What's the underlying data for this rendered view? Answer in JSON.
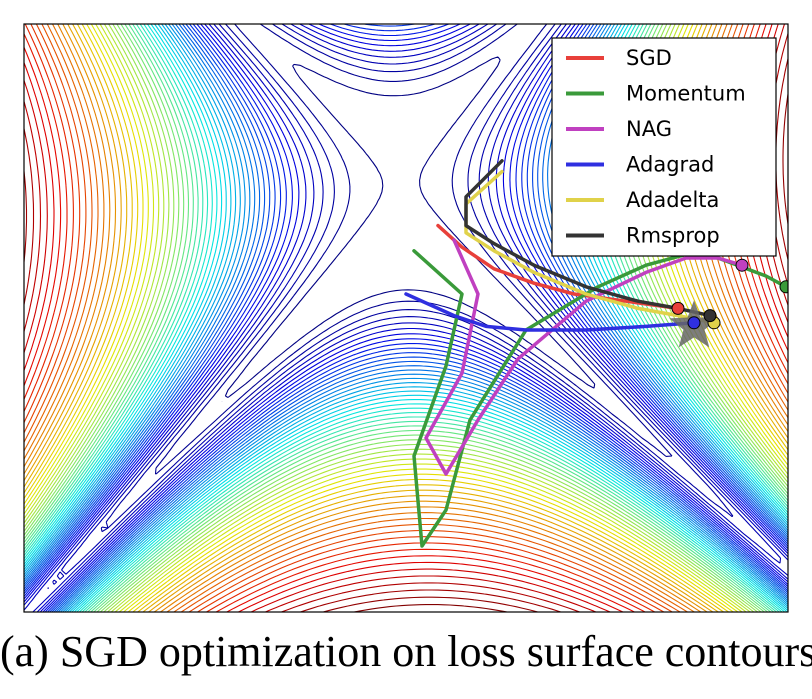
{
  "caption": "(a) SGD optimization on loss surface contours",
  "chart_data": {
    "type": "line",
    "title": "",
    "xlabel": "",
    "ylabel": "",
    "background": "contour",
    "contour_colormap": "jet",
    "legend_position": "top-right",
    "minimum_marker": "star",
    "series": [
      {
        "name": "SGD",
        "color": "#e8403a",
        "x": [
          0.08,
          0.14,
          0.22,
          0.32,
          0.42,
          0.55,
          0.68
        ],
        "y": [
          0.09,
          0.03,
          -0.03,
          -0.07,
          -0.1,
          -0.12,
          -0.14
        ]
      },
      {
        "name": "Momentum",
        "color": "#3a9a3a",
        "x": [
          0.02,
          0.14,
          0.1,
          0.02,
          0.04,
          0.1,
          0.16,
          0.3,
          0.48,
          0.6,
          0.7,
          0.78,
          0.9,
          0.95
        ],
        "y": [
          0.02,
          -0.1,
          -0.3,
          -0.55,
          -0.8,
          -0.7,
          -0.45,
          -0.2,
          -0.08,
          -0.02,
          0.01,
          0.0,
          -0.05,
          -0.08
        ]
      },
      {
        "name": "NAG",
        "color": "#c040c0",
        "x": [
          0.12,
          0.18,
          0.14,
          0.05,
          0.1,
          0.18,
          0.28,
          0.45,
          0.6,
          0.7,
          0.78,
          0.84
        ],
        "y": [
          0.05,
          -0.1,
          -0.32,
          -0.5,
          -0.6,
          -0.45,
          -0.28,
          -0.12,
          -0.04,
          0.0,
          0.0,
          -0.02
        ]
      },
      {
        "name": "Adagrad",
        "color": "#2f2fe0",
        "x": [
          0.0,
          0.08,
          0.12,
          0.2,
          0.3,
          0.45,
          0.6,
          0.72
        ],
        "y": [
          -0.1,
          -0.14,
          -0.16,
          -0.19,
          -0.2,
          -0.2,
          -0.19,
          -0.18
        ]
      },
      {
        "name": "Adadelta",
        "color": "#e0d24a",
        "x": [
          0.24,
          0.15,
          0.15,
          0.22,
          0.32,
          0.45,
          0.58,
          0.68,
          0.77
        ],
        "y": [
          0.24,
          0.15,
          0.07,
          0.02,
          -0.04,
          -0.1,
          -0.14,
          -0.16,
          -0.18
        ]
      },
      {
        "name": "Rmsprop",
        "color": "#333333",
        "x": [
          0.24,
          0.15,
          0.15,
          0.22,
          0.32,
          0.45,
          0.58,
          0.68,
          0.76
        ],
        "y": [
          0.27,
          0.17,
          0.09,
          0.04,
          -0.02,
          -0.08,
          -0.12,
          -0.14,
          -0.16
        ]
      }
    ],
    "minimum_point": {
      "x": 0.72,
      "y": -0.19
    }
  }
}
